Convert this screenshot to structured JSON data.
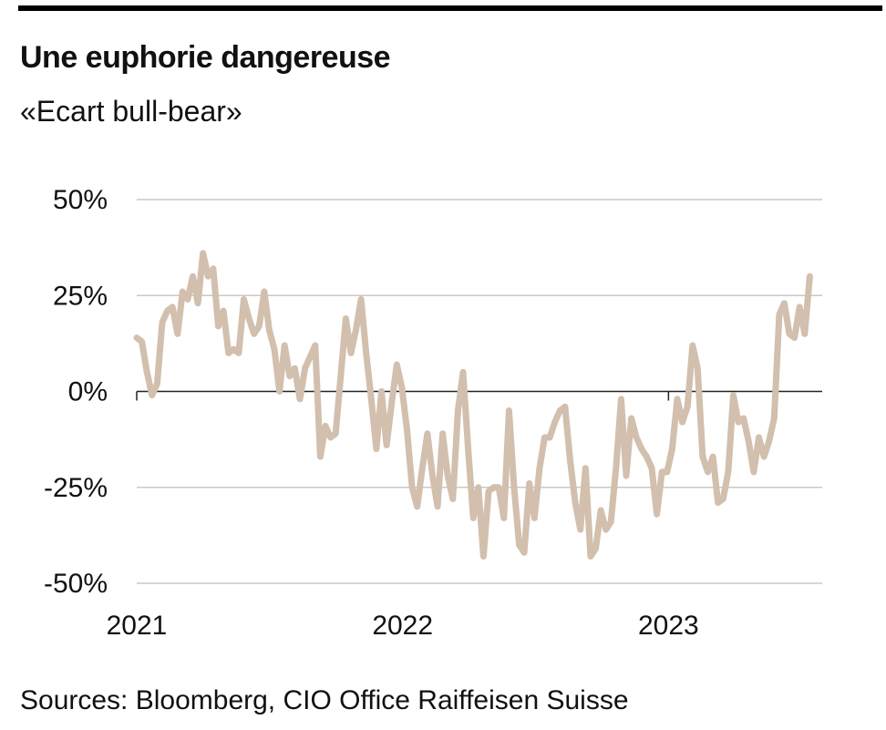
{
  "title": "Une euphorie dangereuse",
  "subtitle": "«Ecart bull-bear»",
  "source": "Sources: Bloomberg, CIO Office Raiffeisen Suisse",
  "colors": {
    "line": "#d2bfad",
    "grid": "#c8c8c8",
    "axis": "#222222",
    "rule": "#000000"
  },
  "chart_data": {
    "type": "line",
    "title": "Une euphorie dangereuse",
    "subtitle": "«Ecart bull-bear»",
    "xlabel": "",
    "ylabel": "",
    "ylim": [
      -50,
      50
    ],
    "yticks": [
      50,
      25,
      0,
      -25,
      -50
    ],
    "ytick_labels": [
      "50%",
      "25%",
      "0%",
      "-25%",
      "-50%"
    ],
    "xticks": [
      "2021",
      "2022",
      "2023"
    ],
    "xlim": [
      "2021-01-01",
      "2023-07-31"
    ],
    "grid": true,
    "series": [
      {
        "data": [
          [
            "2021-01-01",
            14
          ],
          [
            "2021-01-08",
            13
          ],
          [
            "2021-01-15",
            5
          ],
          [
            "2021-01-22",
            -1
          ],
          [
            "2021-01-29",
            2
          ],
          [
            "2021-02-05",
            18
          ],
          [
            "2021-02-12",
            21
          ],
          [
            "2021-02-19",
            22
          ],
          [
            "2021-02-26",
            15
          ],
          [
            "2021-03-05",
            26
          ],
          [
            "2021-03-12",
            24
          ],
          [
            "2021-03-19",
            30
          ],
          [
            "2021-03-26",
            23
          ],
          [
            "2021-04-02",
            36
          ],
          [
            "2021-04-09",
            30
          ],
          [
            "2021-04-16",
            32
          ],
          [
            "2021-04-23",
            17
          ],
          [
            "2021-04-30",
            21
          ],
          [
            "2021-05-07",
            10
          ],
          [
            "2021-05-14",
            11
          ],
          [
            "2021-05-21",
            10
          ],
          [
            "2021-05-28",
            24
          ],
          [
            "2021-06-04",
            19
          ],
          [
            "2021-06-11",
            15
          ],
          [
            "2021-06-18",
            17
          ],
          [
            "2021-06-25",
            26
          ],
          [
            "2021-07-02",
            16
          ],
          [
            "2021-07-09",
            11
          ],
          [
            "2021-07-16",
            0
          ],
          [
            "2021-07-23",
            12
          ],
          [
            "2021-07-30",
            4
          ],
          [
            "2021-08-06",
            6
          ],
          [
            "2021-08-13",
            -2
          ],
          [
            "2021-08-20",
            6
          ],
          [
            "2021-08-27",
            9
          ],
          [
            "2021-09-03",
            12
          ],
          [
            "2021-09-10",
            -17
          ],
          [
            "2021-09-17",
            -9
          ],
          [
            "2021-09-24",
            -12
          ],
          [
            "2021-10-01",
            -11
          ],
          [
            "2021-10-08",
            4
          ],
          [
            "2021-10-15",
            19
          ],
          [
            "2021-10-22",
            10
          ],
          [
            "2021-10-29",
            16
          ],
          [
            "2021-11-05",
            24
          ],
          [
            "2021-11-12",
            10
          ],
          [
            "2021-11-19",
            -2
          ],
          [
            "2021-11-26",
            -15
          ],
          [
            "2021-12-03",
            0
          ],
          [
            "2021-12-10",
            -14
          ],
          [
            "2021-12-17",
            -3
          ],
          [
            "2021-12-24",
            7
          ],
          [
            "2021-12-31",
            1
          ],
          [
            "2022-01-07",
            -10
          ],
          [
            "2022-01-14",
            -25
          ],
          [
            "2022-01-21",
            -30
          ],
          [
            "2022-01-28",
            -20
          ],
          [
            "2022-02-04",
            -11
          ],
          [
            "2022-02-11",
            -22
          ],
          [
            "2022-02-18",
            -30
          ],
          [
            "2022-02-25",
            -11
          ],
          [
            "2022-03-04",
            -22
          ],
          [
            "2022-03-11",
            -28
          ],
          [
            "2022-03-18",
            -5
          ],
          [
            "2022-03-25",
            5
          ],
          [
            "2022-04-01",
            -15
          ],
          [
            "2022-04-08",
            -33
          ],
          [
            "2022-04-15",
            -25
          ],
          [
            "2022-04-22",
            -43
          ],
          [
            "2022-04-29",
            -26
          ],
          [
            "2022-05-06",
            -25
          ],
          [
            "2022-05-13",
            -25
          ],
          [
            "2022-05-20",
            -33
          ],
          [
            "2022-05-27",
            -5
          ],
          [
            "2022-06-03",
            -25
          ],
          [
            "2022-06-10",
            -40
          ],
          [
            "2022-06-17",
            -42
          ],
          [
            "2022-06-24",
            -24
          ],
          [
            "2022-07-01",
            -33
          ],
          [
            "2022-07-08",
            -20
          ],
          [
            "2022-07-15",
            -12
          ],
          [
            "2022-07-22",
            -12
          ],
          [
            "2022-07-29",
            -8
          ],
          [
            "2022-08-05",
            -5
          ],
          [
            "2022-08-12",
            -4
          ],
          [
            "2022-08-19",
            -18
          ],
          [
            "2022-08-26",
            -29
          ],
          [
            "2022-09-02",
            -36
          ],
          [
            "2022-09-09",
            -20
          ],
          [
            "2022-09-16",
            -43
          ],
          [
            "2022-09-23",
            -41
          ],
          [
            "2022-09-30",
            -31
          ],
          [
            "2022-10-07",
            -36
          ],
          [
            "2022-10-14",
            -34
          ],
          [
            "2022-10-21",
            -20
          ],
          [
            "2022-10-28",
            -2
          ],
          [
            "2022-11-04",
            -22
          ],
          [
            "2022-11-11",
            -7
          ],
          [
            "2022-11-18",
            -12
          ],
          [
            "2022-11-25",
            -15
          ],
          [
            "2022-12-02",
            -17
          ],
          [
            "2022-12-09",
            -20
          ],
          [
            "2022-12-16",
            -32
          ],
          [
            "2022-12-23",
            -21
          ],
          [
            "2022-12-30",
            -21
          ],
          [
            "2023-01-06",
            -15
          ],
          [
            "2023-01-13",
            -2
          ],
          [
            "2023-01-20",
            -8
          ],
          [
            "2023-01-27",
            -4
          ],
          [
            "2023-02-03",
            12
          ],
          [
            "2023-02-10",
            6
          ],
          [
            "2023-02-17",
            -17
          ],
          [
            "2023-02-24",
            -21
          ],
          [
            "2023-03-03",
            -17
          ],
          [
            "2023-03-10",
            -29
          ],
          [
            "2023-03-17",
            -28
          ],
          [
            "2023-03-24",
            -21
          ],
          [
            "2023-03-31",
            -1
          ],
          [
            "2023-04-07",
            -8
          ],
          [
            "2023-04-14",
            -7
          ],
          [
            "2023-04-21",
            -13
          ],
          [
            "2023-04-28",
            -21
          ],
          [
            "2023-05-05",
            -12
          ],
          [
            "2023-05-12",
            -17
          ],
          [
            "2023-05-19",
            -13
          ],
          [
            "2023-05-26",
            -7
          ],
          [
            "2023-06-02",
            20
          ],
          [
            "2023-06-09",
            23
          ],
          [
            "2023-06-16",
            15
          ],
          [
            "2023-06-23",
            14
          ],
          [
            "2023-06-30",
            22
          ],
          [
            "2023-07-07",
            15
          ],
          [
            "2023-07-14",
            30
          ]
        ]
      }
    ]
  }
}
